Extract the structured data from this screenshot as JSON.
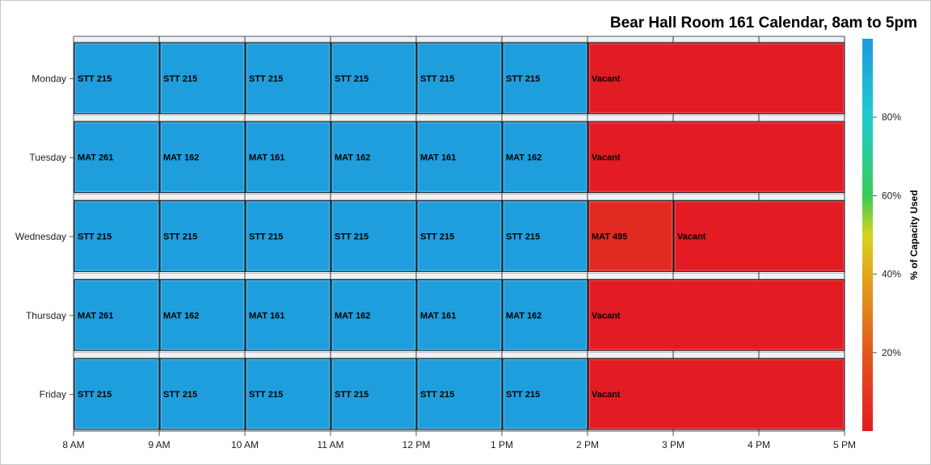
{
  "chart_data": {
    "type": "heatmap",
    "title": "Bear Hall Room 161 Calendar, 8am to 5pm",
    "x_ticks": [
      "8 AM",
      "9 AM",
      "10 AM",
      "11 AM",
      "12 PM",
      "1 PM",
      "2 PM",
      "3 PM",
      "4 PM",
      "5 PM"
    ],
    "x_range": [
      8,
      17
    ],
    "days": [
      "Monday",
      "Tuesday",
      "Wednesday",
      "Thursday",
      "Friday"
    ],
    "events": [
      {
        "day": "Monday",
        "start": 8,
        "end": 9,
        "label": "STT 215",
        "capacity_pct": 98
      },
      {
        "day": "Monday",
        "start": 9,
        "end": 10,
        "label": "STT 215",
        "capacity_pct": 98
      },
      {
        "day": "Monday",
        "start": 10,
        "end": 11,
        "label": "STT 215",
        "capacity_pct": 98
      },
      {
        "day": "Monday",
        "start": 11,
        "end": 12,
        "label": "STT 215",
        "capacity_pct": 98
      },
      {
        "day": "Monday",
        "start": 12,
        "end": 13,
        "label": "STT 215",
        "capacity_pct": 98
      },
      {
        "day": "Monday",
        "start": 13,
        "end": 14,
        "label": "STT 215",
        "capacity_pct": 98
      },
      {
        "day": "Monday",
        "start": 14,
        "end": 17,
        "label": "Vacant",
        "capacity_pct": 0
      },
      {
        "day": "Tuesday",
        "start": 8,
        "end": 9,
        "label": "MAT 261",
        "capacity_pct": 98
      },
      {
        "day": "Tuesday",
        "start": 9,
        "end": 10,
        "label": "MAT 162",
        "capacity_pct": 98
      },
      {
        "day": "Tuesday",
        "start": 10,
        "end": 11,
        "label": "MAT 161",
        "capacity_pct": 98
      },
      {
        "day": "Tuesday",
        "start": 11,
        "end": 12,
        "label": "MAT 162",
        "capacity_pct": 98
      },
      {
        "day": "Tuesday",
        "start": 12,
        "end": 13,
        "label": "MAT 161",
        "capacity_pct": 98
      },
      {
        "day": "Tuesday",
        "start": 13,
        "end": 14,
        "label": "MAT 162",
        "capacity_pct": 98
      },
      {
        "day": "Tuesday",
        "start": 14,
        "end": 17,
        "label": "Vacant",
        "capacity_pct": 0
      },
      {
        "day": "Wednesday",
        "start": 8,
        "end": 9,
        "label": "STT 215",
        "capacity_pct": 98
      },
      {
        "day": "Wednesday",
        "start": 9,
        "end": 10,
        "label": "STT 215",
        "capacity_pct": 98
      },
      {
        "day": "Wednesday",
        "start": 10,
        "end": 11,
        "label": "STT 215",
        "capacity_pct": 98
      },
      {
        "day": "Wednesday",
        "start": 11,
        "end": 12,
        "label": "STT 215",
        "capacity_pct": 98
      },
      {
        "day": "Wednesday",
        "start": 12,
        "end": 13,
        "label": "STT 215",
        "capacity_pct": 98
      },
      {
        "day": "Wednesday",
        "start": 13,
        "end": 14,
        "label": "STT 215",
        "capacity_pct": 98
      },
      {
        "day": "Wednesday",
        "start": 14,
        "end": 15,
        "label": "MAT 495",
        "capacity_pct": 5
      },
      {
        "day": "Wednesday",
        "start": 15,
        "end": 17,
        "label": "Vacant",
        "capacity_pct": 0
      },
      {
        "day": "Thursday",
        "start": 8,
        "end": 9,
        "label": "MAT 261",
        "capacity_pct": 98
      },
      {
        "day": "Thursday",
        "start": 9,
        "end": 10,
        "label": "MAT 162",
        "capacity_pct": 98
      },
      {
        "day": "Thursday",
        "start": 10,
        "end": 11,
        "label": "MAT 161",
        "capacity_pct": 98
      },
      {
        "day": "Thursday",
        "start": 11,
        "end": 12,
        "label": "MAT 162",
        "capacity_pct": 98
      },
      {
        "day": "Thursday",
        "start": 12,
        "end": 13,
        "label": "MAT 161",
        "capacity_pct": 98
      },
      {
        "day": "Thursday",
        "start": 13,
        "end": 14,
        "label": "MAT 162",
        "capacity_pct": 98
      },
      {
        "day": "Thursday",
        "start": 14,
        "end": 17,
        "label": "Vacant",
        "capacity_pct": 0
      },
      {
        "day": "Friday",
        "start": 8,
        "end": 9,
        "label": "STT 215",
        "capacity_pct": 98
      },
      {
        "day": "Friday",
        "start": 9,
        "end": 10,
        "label": "STT 215",
        "capacity_pct": 98
      },
      {
        "day": "Friday",
        "start": 10,
        "end": 11,
        "label": "STT 215",
        "capacity_pct": 98
      },
      {
        "day": "Friday",
        "start": 11,
        "end": 12,
        "label": "STT 215",
        "capacity_pct": 98
      },
      {
        "day": "Friday",
        "start": 12,
        "end": 13,
        "label": "STT 215",
        "capacity_pct": 98
      },
      {
        "day": "Friday",
        "start": 13,
        "end": 14,
        "label": "STT 215",
        "capacity_pct": 98
      },
      {
        "day": "Friday",
        "start": 14,
        "end": 17,
        "label": "Vacant",
        "capacity_pct": 0
      }
    ],
    "colorbar": {
      "label": "% of Capacity Used",
      "range": [
        0,
        100
      ],
      "ticks": [
        {
          "value": 20,
          "label": "20%"
        },
        {
          "value": 40,
          "label": "40%"
        },
        {
          "value": 60,
          "label": "60%"
        },
        {
          "value": 80,
          "label": "80%"
        }
      ],
      "stops": [
        {
          "value": 0,
          "color": "#e31b23"
        },
        {
          "value": 20,
          "color": "#e2571f"
        },
        {
          "value": 40,
          "color": "#e0a81c"
        },
        {
          "value": 50,
          "color": "#d8d31e"
        },
        {
          "value": 60,
          "color": "#38cc58"
        },
        {
          "value": 80,
          "color": "#20cccf"
        },
        {
          "value": 100,
          "color": "#1f99de"
        }
      ]
    },
    "grid": true,
    "legend_position": "right"
  }
}
